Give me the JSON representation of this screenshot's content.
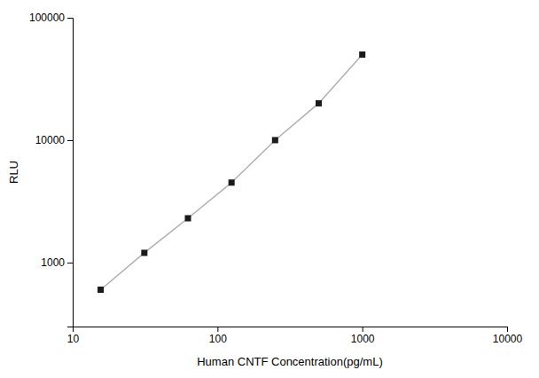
{
  "chart_data": {
    "type": "line",
    "x": [
      15.6,
      31.25,
      62.5,
      125,
      250,
      500,
      1000
    ],
    "values": [
      600,
      1200,
      2300,
      4500,
      10000,
      20000,
      50000
    ],
    "xlabel": "Human CNTF Concentration(pg/mL)",
    "ylabel": "RLU",
    "xlim": [
      10,
      10000
    ],
    "ylim": [
      300,
      100000
    ],
    "xticks": [
      10,
      100,
      1000,
      10000
    ],
    "yticks": [
      1000,
      10000,
      100000
    ],
    "log": true,
    "grid": false,
    "color": "#1a1a1a",
    "marker": "square"
  }
}
